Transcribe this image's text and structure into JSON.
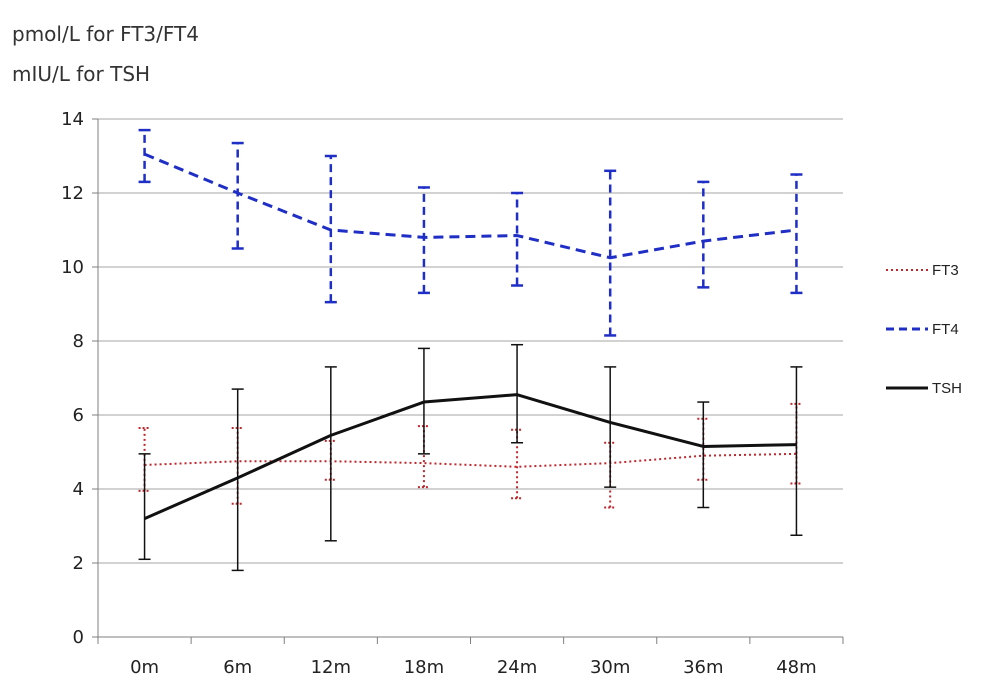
{
  "unit_labels": [
    "pmol/L for FT3/FT4",
    "mIU/L for TSH"
  ],
  "chart_data": {
    "type": "line",
    "categories": [
      "0m",
      "6m",
      "12m",
      "18m",
      "24m",
      "30m",
      "36m",
      "48m"
    ],
    "ylim": [
      0,
      14
    ],
    "yticks": [
      0,
      2,
      4,
      6,
      8,
      10,
      12,
      14
    ],
    "grid": "horizontal",
    "legend_position": "right",
    "series": [
      {
        "name": "FT3",
        "color": "#c0272d",
        "style": "dotted",
        "values": [
          4.65,
          4.75,
          4.75,
          4.7,
          4.6,
          4.7,
          4.9,
          4.95
        ],
        "error_low": [
          3.95,
          3.6,
          4.25,
          4.05,
          3.75,
          3.5,
          4.25,
          4.15
        ],
        "error_high": [
          5.65,
          5.65,
          5.3,
          5.7,
          5.6,
          5.25,
          5.9,
          6.3
        ]
      },
      {
        "name": "FT4",
        "color": "#1f2ec6",
        "style": "dashed",
        "values": [
          13.05,
          12.0,
          11.0,
          10.8,
          10.85,
          10.25,
          10.7,
          11.0
        ],
        "error_low": [
          12.3,
          10.5,
          9.05,
          9.3,
          9.5,
          8.15,
          9.45,
          9.3
        ],
        "error_high": [
          13.7,
          13.35,
          13.0,
          12.15,
          12.0,
          12.6,
          12.3,
          12.5
        ]
      },
      {
        "name": "TSH",
        "color": "#111111",
        "style": "solid",
        "values": [
          3.2,
          4.3,
          5.45,
          6.35,
          6.55,
          5.8,
          5.15,
          5.2
        ],
        "error_low": [
          2.1,
          1.8,
          2.6,
          4.95,
          5.25,
          4.05,
          3.5,
          2.75
        ],
        "error_high": [
          4.95,
          6.7,
          7.3,
          7.8,
          7.9,
          7.3,
          6.35,
          7.3
        ]
      }
    ]
  }
}
